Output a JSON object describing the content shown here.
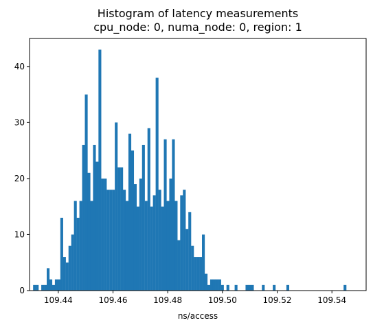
{
  "chart_data": {
    "type": "bar",
    "title_lines": [
      "Histogram of latency measurements",
      "cpu_node: 0, numa_node: 0, region: 1"
    ],
    "xlabel": "ns/access",
    "ylabel": "",
    "bar_color": "#1f77b4",
    "xlim": [
      109.4295,
      109.5525
    ],
    "ylim": [
      0,
      45
    ],
    "xticks": [
      109.44,
      109.46,
      109.48,
      109.5,
      109.52,
      109.54
    ],
    "xtick_labels": [
      "109.44",
      "109.46",
      "109.48",
      "109.50",
      "109.52",
      "109.54"
    ],
    "yticks": [
      0,
      10,
      20,
      30,
      40
    ],
    "ytick_labels": [
      "0",
      "10",
      "20",
      "30",
      "40"
    ],
    "bin_start": 109.4308,
    "bin_width": 0.0009953,
    "counts": [
      1,
      1,
      0,
      1,
      1,
      4,
      2,
      1,
      2,
      2,
      13,
      6,
      5,
      8,
      10,
      16,
      13,
      16,
      26,
      35,
      21,
      16,
      26,
      23,
      43,
      20,
      20,
      18,
      18,
      18,
      30,
      22,
      22,
      18,
      16,
      28,
      25,
      19,
      15,
      20,
      26,
      16,
      29,
      15,
      17,
      38,
      18,
      15,
      27,
      16,
      20,
      27,
      16,
      9,
      17,
      18,
      11,
      14,
      8,
      6,
      6,
      6,
      10,
      3,
      1,
      2,
      2,
      2,
      2,
      1,
      0,
      1,
      0,
      0,
      1,
      0,
      0,
      0,
      1,
      1,
      1,
      0,
      0,
      0,
      1,
      0,
      0,
      0,
      1,
      0,
      0,
      0,
      0,
      1,
      0,
      0,
      0,
      0,
      0,
      0,
      0,
      0,
      0,
      0,
      0,
      0,
      0,
      0,
      0,
      0,
      0,
      0,
      0,
      0,
      1
    ]
  }
}
